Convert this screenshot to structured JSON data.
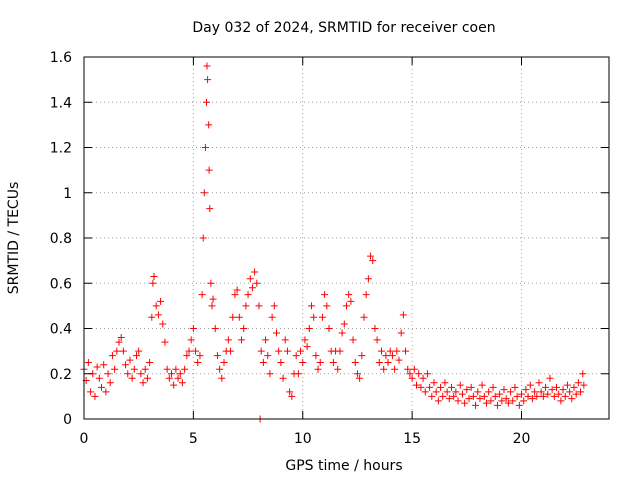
{
  "chart_data": {
    "type": "scatter",
    "title": "Day 032 of 2024, SRMTID for receiver coen",
    "xlabel": "GPS time / hours",
    "ylabel": "SRMTID / TECUs",
    "xlim": [
      0,
      24
    ],
    "ylim": [
      0,
      1.6
    ],
    "x_ticks": [
      0,
      5,
      10,
      15,
      20
    ],
    "x_tick_labels": [
      "0",
      "5",
      "10",
      "15",
      "20"
    ],
    "y_ticks": [
      0,
      0.2,
      0.4,
      0.6,
      0.8,
      1.0,
      1.2,
      1.4,
      1.6
    ],
    "y_tick_labels": [
      "0",
      "0.2",
      "0.4",
      "0.6",
      "0.8",
      "1",
      "1.2",
      "1.4",
      "1.6"
    ],
    "grid": true,
    "legend": "none",
    "marker": "plus",
    "series_color": "#ff0000",
    "series": [
      {
        "name": "SRMTID",
        "points": [
          [
            0.0,
            0.22
          ],
          [
            0.1,
            0.17
          ],
          [
            0.2,
            0.25
          ],
          [
            0.3,
            0.12
          ],
          [
            0.4,
            0.2
          ],
          [
            0.5,
            0.1
          ],
          [
            0.6,
            0.23
          ],
          [
            0.7,
            0.18
          ],
          [
            0.8,
            0.14
          ],
          [
            0.9,
            0.24
          ],
          [
            1.0,
            0.12
          ],
          [
            1.1,
            0.2
          ],
          [
            1.2,
            0.16
          ],
          [
            1.3,
            0.28
          ],
          [
            1.4,
            0.22
          ],
          [
            1.5,
            0.3
          ],
          [
            1.6,
            0.34
          ],
          [
            1.7,
            0.36
          ],
          [
            1.8,
            0.3
          ],
          [
            1.9,
            0.24
          ],
          [
            2.0,
            0.2
          ],
          [
            2.1,
            0.26
          ],
          [
            2.2,
            0.18
          ],
          [
            2.3,
            0.22
          ],
          [
            2.4,
            0.28
          ],
          [
            2.5,
            0.3
          ],
          [
            2.6,
            0.2
          ],
          [
            2.7,
            0.16
          ],
          [
            2.8,
            0.22
          ],
          [
            2.9,
            0.18
          ],
          [
            3.0,
            0.25
          ],
          [
            3.1,
            0.45
          ],
          [
            3.15,
            0.6
          ],
          [
            3.2,
            0.63
          ],
          [
            3.3,
            0.5
          ],
          [
            3.4,
            0.46
          ],
          [
            3.5,
            0.52
          ],
          [
            3.6,
            0.42
          ],
          [
            3.7,
            0.34
          ],
          [
            3.8,
            0.22
          ],
          [
            3.9,
            0.18
          ],
          [
            4.0,
            0.2
          ],
          [
            4.1,
            0.15
          ],
          [
            4.2,
            0.22
          ],
          [
            4.3,
            0.18
          ],
          [
            4.4,
            0.2
          ],
          [
            4.5,
            0.16
          ],
          [
            4.6,
            0.22
          ],
          [
            4.7,
            0.28
          ],
          [
            4.8,
            0.3
          ],
          [
            4.9,
            0.35
          ],
          [
            5.0,
            0.4
          ],
          [
            5.1,
            0.3
          ],
          [
            5.2,
            0.25
          ],
          [
            5.3,
            0.28
          ],
          [
            5.4,
            0.55
          ],
          [
            5.45,
            0.8
          ],
          [
            5.5,
            1.0
          ],
          [
            5.55,
            1.2
          ],
          [
            5.6,
            1.4
          ],
          [
            5.62,
            1.56
          ],
          [
            5.65,
            1.5
          ],
          [
            5.7,
            1.3
          ],
          [
            5.72,
            1.1
          ],
          [
            5.75,
            0.93
          ],
          [
            5.8,
            0.6
          ],
          [
            5.85,
            0.5
          ],
          [
            5.9,
            0.53
          ],
          [
            6.0,
            0.4
          ],
          [
            6.1,
            0.28
          ],
          [
            6.2,
            0.22
          ],
          [
            6.3,
            0.18
          ],
          [
            6.4,
            0.25
          ],
          [
            6.5,
            0.3
          ],
          [
            6.6,
            0.35
          ],
          [
            6.7,
            0.3
          ],
          [
            6.8,
            0.45
          ],
          [
            6.9,
            0.55
          ],
          [
            7.0,
            0.57
          ],
          [
            7.1,
            0.45
          ],
          [
            7.2,
            0.35
          ],
          [
            7.3,
            0.4
          ],
          [
            7.4,
            0.5
          ],
          [
            7.5,
            0.55
          ],
          [
            7.6,
            0.62
          ],
          [
            7.7,
            0.58
          ],
          [
            7.8,
            0.65
          ],
          [
            7.9,
            0.6
          ],
          [
            8.0,
            0.5
          ],
          [
            8.05,
            0.0
          ],
          [
            8.1,
            0.3
          ],
          [
            8.2,
            0.25
          ],
          [
            8.3,
            0.35
          ],
          [
            8.4,
            0.28
          ],
          [
            8.5,
            0.2
          ],
          [
            8.6,
            0.45
          ],
          [
            8.7,
            0.5
          ],
          [
            8.8,
            0.38
          ],
          [
            8.9,
            0.3
          ],
          [
            9.0,
            0.25
          ],
          [
            9.1,
            0.18
          ],
          [
            9.2,
            0.35
          ],
          [
            9.3,
            0.3
          ],
          [
            9.4,
            0.12
          ],
          [
            9.5,
            0.1
          ],
          [
            9.6,
            0.2
          ],
          [
            9.7,
            0.28
          ],
          [
            9.8,
            0.2
          ],
          [
            9.9,
            0.3
          ],
          [
            10.0,
            0.25
          ],
          [
            10.1,
            0.35
          ],
          [
            10.2,
            0.32
          ],
          [
            10.3,
            0.4
          ],
          [
            10.4,
            0.5
          ],
          [
            10.5,
            0.45
          ],
          [
            10.6,
            0.28
          ],
          [
            10.7,
            0.22
          ],
          [
            10.8,
            0.25
          ],
          [
            10.9,
            0.45
          ],
          [
            11.0,
            0.55
          ],
          [
            11.1,
            0.5
          ],
          [
            11.2,
            0.4
          ],
          [
            11.3,
            0.3
          ],
          [
            11.4,
            0.25
          ],
          [
            11.5,
            0.3
          ],
          [
            11.6,
            0.22
          ],
          [
            11.7,
            0.3
          ],
          [
            11.8,
            0.38
          ],
          [
            11.9,
            0.42
          ],
          [
            12.0,
            0.5
          ],
          [
            12.1,
            0.55
          ],
          [
            12.2,
            0.52
          ],
          [
            12.3,
            0.35
          ],
          [
            12.4,
            0.25
          ],
          [
            12.5,
            0.2
          ],
          [
            12.6,
            0.18
          ],
          [
            12.7,
            0.28
          ],
          [
            12.8,
            0.45
          ],
          [
            12.9,
            0.55
          ],
          [
            13.0,
            0.62
          ],
          [
            13.1,
            0.72
          ],
          [
            13.2,
            0.7
          ],
          [
            13.3,
            0.4
          ],
          [
            13.4,
            0.35
          ],
          [
            13.5,
            0.25
          ],
          [
            13.6,
            0.3
          ],
          [
            13.7,
            0.22
          ],
          [
            13.8,
            0.28
          ],
          [
            13.9,
            0.25
          ],
          [
            14.0,
            0.3
          ],
          [
            14.1,
            0.28
          ],
          [
            14.2,
            0.22
          ],
          [
            14.3,
            0.3
          ],
          [
            14.4,
            0.26
          ],
          [
            14.5,
            0.38
          ],
          [
            14.6,
            0.46
          ],
          [
            14.7,
            0.3
          ],
          [
            14.8,
            0.22
          ],
          [
            14.9,
            0.2
          ],
          [
            15.0,
            0.18
          ],
          [
            15.1,
            0.22
          ],
          [
            15.2,
            0.15
          ],
          [
            15.3,
            0.2
          ],
          [
            15.4,
            0.14
          ],
          [
            15.5,
            0.18
          ],
          [
            15.6,
            0.12
          ],
          [
            15.7,
            0.2
          ],
          [
            15.8,
            0.14
          ],
          [
            15.9,
            0.1
          ],
          [
            16.0,
            0.16
          ],
          [
            16.1,
            0.12
          ],
          [
            16.2,
            0.08
          ],
          [
            16.3,
            0.14
          ],
          [
            16.4,
            0.1
          ],
          [
            16.5,
            0.16
          ],
          [
            16.6,
            0.12
          ],
          [
            16.7,
            0.09
          ],
          [
            16.8,
            0.14
          ],
          [
            16.9,
            0.1
          ],
          [
            17.0,
            0.12
          ],
          [
            17.1,
            0.08
          ],
          [
            17.2,
            0.15
          ],
          [
            17.3,
            0.11
          ],
          [
            17.4,
            0.07
          ],
          [
            17.5,
            0.13
          ],
          [
            17.6,
            0.09
          ],
          [
            17.7,
            0.14
          ],
          [
            17.8,
            0.1
          ],
          [
            17.9,
            0.06
          ],
          [
            18.0,
            0.12
          ],
          [
            18.1,
            0.09
          ],
          [
            18.2,
            0.15
          ],
          [
            18.3,
            0.1
          ],
          [
            18.4,
            0.07
          ],
          [
            18.5,
            0.12
          ],
          [
            18.6,
            0.08
          ],
          [
            18.7,
            0.14
          ],
          [
            18.8,
            0.1
          ],
          [
            18.9,
            0.06
          ],
          [
            19.0,
            0.11
          ],
          [
            19.1,
            0.08
          ],
          [
            19.2,
            0.13
          ],
          [
            19.3,
            0.09
          ],
          [
            19.4,
            0.07
          ],
          [
            19.5,
            0.12
          ],
          [
            19.6,
            0.08
          ],
          [
            19.7,
            0.14
          ],
          [
            19.8,
            0.1
          ],
          [
            19.9,
            0.06
          ],
          [
            20.0,
            0.11
          ],
          [
            20.1,
            0.08
          ],
          [
            20.2,
            0.13
          ],
          [
            20.3,
            0.1
          ],
          [
            20.4,
            0.15
          ],
          [
            20.5,
            0.09
          ],
          [
            20.6,
            0.12
          ],
          [
            20.7,
            0.1
          ],
          [
            20.8,
            0.16
          ],
          [
            20.9,
            0.12
          ],
          [
            21.0,
            0.1
          ],
          [
            21.1,
            0.14
          ],
          [
            21.2,
            0.11
          ],
          [
            21.3,
            0.18
          ],
          [
            21.4,
            0.13
          ],
          [
            21.5,
            0.1
          ],
          [
            21.6,
            0.14
          ],
          [
            21.7,
            0.11
          ],
          [
            21.8,
            0.08
          ],
          [
            21.9,
            0.13
          ],
          [
            22.0,
            0.1
          ],
          [
            22.1,
            0.15
          ],
          [
            22.2,
            0.12
          ],
          [
            22.3,
            0.09
          ],
          [
            22.4,
            0.14
          ],
          [
            22.5,
            0.11
          ],
          [
            22.6,
            0.16
          ],
          [
            22.7,
            0.12
          ],
          [
            22.8,
            0.2
          ],
          [
            22.85,
            0.15
          ]
        ]
      }
    ]
  }
}
